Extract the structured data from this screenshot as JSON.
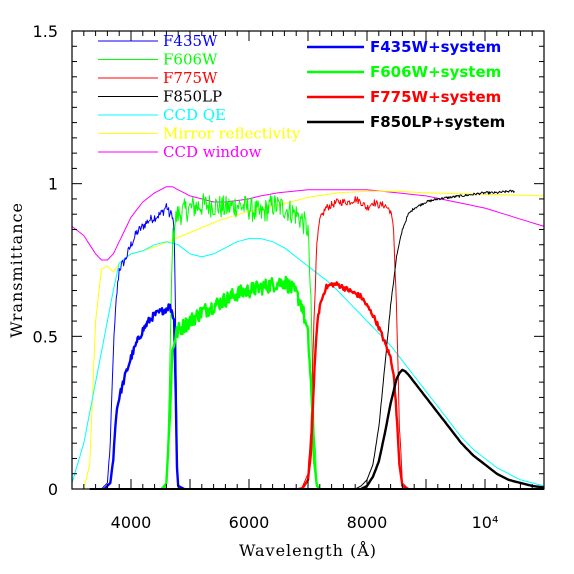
{
  "chart_data": {
    "type": "line",
    "title": "",
    "xlabel": "Wavelength (Å)",
    "ylabel": "Wransmittance",
    "xlim": [
      3000,
      11000
    ],
    "ylim": [
      0,
      1.5
    ],
    "x_ticks": [
      {
        "value": 4000,
        "label": "4000"
      },
      {
        "value": 6000,
        "label": "6000"
      },
      {
        "value": 8000,
        "label": "8000"
      },
      {
        "value": 10000,
        "label": "10⁴"
      }
    ],
    "y_ticks": [
      {
        "value": 0,
        "label": "0"
      },
      {
        "value": 0.5,
        "label": "0.5"
      },
      {
        "value": 1,
        "label": "1"
      },
      {
        "value": 1.5,
        "label": "1.5"
      }
    ],
    "grid": false,
    "legend_left": [
      {
        "name": "F435W",
        "color": "#0000ff"
      },
      {
        "name": "F606W",
        "color": "#00ff00"
      },
      {
        "name": "F775W",
        "color": "#ff0000"
      },
      {
        "name": "F850LP",
        "color": "#000000"
      },
      {
        "name": "CCD QE",
        "color": "#00ffff"
      },
      {
        "name": "Mirror reflectivity",
        "color": "#ffff00"
      },
      {
        "name": "CCD window",
        "color": "#ff00ff"
      }
    ],
    "legend_right": [
      {
        "name": "F435W+system",
        "color": "#0000ff"
      },
      {
        "name": "F606W+system",
        "color": "#00ff00"
      },
      {
        "name": "F775W+system",
        "color": "#ff0000"
      },
      {
        "name": "F850LP+system",
        "color": "#000000"
      }
    ],
    "series": [
      {
        "key": "ccd_window",
        "color": "#ff00ff",
        "width": 1,
        "noise": 0,
        "x": [
          3000,
          3200,
          3400,
          3500,
          3600,
          3700,
          3800,
          4000,
          4200,
          4400,
          4600,
          4700,
          4800,
          5000,
          5200,
          5400,
          5600,
          5800,
          6000,
          6200,
          6500,
          7000,
          7500,
          8000,
          8500,
          9000,
          9500,
          10000,
          10500,
          11000
        ],
        "y": [
          0.86,
          0.83,
          0.77,
          0.75,
          0.75,
          0.77,
          0.81,
          0.89,
          0.94,
          0.97,
          0.99,
          0.99,
          0.98,
          0.96,
          0.95,
          0.94,
          0.94,
          0.945,
          0.95,
          0.96,
          0.97,
          0.98,
          0.98,
          0.98,
          0.97,
          0.96,
          0.94,
          0.92,
          0.89,
          0.86
        ]
      },
      {
        "key": "mirror",
        "color": "#ffff00",
        "width": 1,
        "noise": 0,
        "x": [
          3000,
          3200,
          3300,
          3400,
          3500,
          3600,
          3700,
          3800,
          4000,
          4200,
          4500,
          5000,
          5500,
          6000,
          6500,
          7000,
          7500,
          8000,
          8500,
          9000,
          10000,
          11000
        ],
        "y": [
          0,
          0,
          0.08,
          0.55,
          0.72,
          0.73,
          0.71,
          0.74,
          0.77,
          0.78,
          0.8,
          0.84,
          0.88,
          0.91,
          0.93,
          0.955,
          0.97,
          0.975,
          0.975,
          0.97,
          0.965,
          0.96
        ]
      },
      {
        "key": "ccd_qe",
        "color": "#00ffff",
        "width": 1,
        "noise": 0,
        "x": [
          3000,
          3200,
          3400,
          3600,
          3700,
          3800,
          4000,
          4200,
          4400,
          4600,
          4800,
          5000,
          5200,
          5400,
          5600,
          5800,
          6000,
          6200,
          6400,
          6600,
          6800,
          7000,
          7200,
          7400,
          7600,
          7800,
          8000,
          8200,
          8400,
          8600,
          8800,
          9000,
          9200,
          9400,
          9600,
          9800,
          10000,
          10200,
          10400,
          10600,
          10800,
          11000
        ],
        "y": [
          0.02,
          0.15,
          0.35,
          0.55,
          0.65,
          0.74,
          0.77,
          0.78,
          0.8,
          0.81,
          0.8,
          0.77,
          0.76,
          0.77,
          0.79,
          0.81,
          0.82,
          0.82,
          0.81,
          0.79,
          0.76,
          0.73,
          0.7,
          0.67,
          0.63,
          0.59,
          0.55,
          0.51,
          0.47,
          0.42,
          0.37,
          0.32,
          0.27,
          0.22,
          0.17,
          0.13,
          0.1,
          0.07,
          0.05,
          0.03,
          0.02,
          0.01
        ]
      },
      {
        "key": "f435w",
        "color": "#0000ff",
        "width": 1,
        "noise": 0.015,
        "x": [
          3500,
          3600,
          3650,
          3700,
          3750,
          3800,
          3900,
          4000,
          4100,
          4200,
          4300,
          4400,
          4500,
          4550,
          4600,
          4650,
          4700,
          4730,
          4760,
          4780,
          4800,
          4900
        ],
        "y": [
          0,
          0.02,
          0.15,
          0.45,
          0.62,
          0.72,
          0.75,
          0.8,
          0.84,
          0.86,
          0.88,
          0.89,
          0.9,
          0.91,
          0.93,
          0.9,
          0.9,
          0.85,
          0.5,
          0.1,
          0.01,
          0
        ]
      },
      {
        "key": "f606w",
        "color": "#00ff00",
        "width": 1,
        "noise": 0.04,
        "x": [
          4500,
          4600,
          4650,
          4700,
          4750,
          4800,
          5000,
          5200,
          5400,
          5600,
          5800,
          6000,
          6200,
          6400,
          6600,
          6800,
          6900,
          7000,
          7050,
          7100,
          7150,
          7200
        ],
        "y": [
          0,
          0.02,
          0.3,
          0.8,
          0.88,
          0.9,
          0.92,
          0.93,
          0.93,
          0.92,
          0.93,
          0.92,
          0.9,
          0.93,
          0.92,
          0.9,
          0.88,
          0.85,
          0.6,
          0.2,
          0.02,
          0
        ]
      },
      {
        "key": "f775w",
        "color": "#ff0000",
        "width": 1,
        "noise": 0.012,
        "x": [
          6800,
          6900,
          7000,
          7050,
          7100,
          7150,
          7200,
          7300,
          7400,
          7500,
          7600,
          7700,
          7800,
          7900,
          8000,
          8100,
          8200,
          8300,
          8400,
          8450,
          8500,
          8550,
          8600,
          8700
        ],
        "y": [
          0,
          0.005,
          0.05,
          0.2,
          0.55,
          0.8,
          0.88,
          0.92,
          0.93,
          0.94,
          0.94,
          0.94,
          0.95,
          0.94,
          0.92,
          0.94,
          0.93,
          0.93,
          0.91,
          0.85,
          0.6,
          0.2,
          0.02,
          0
        ]
      },
      {
        "key": "f850lp",
        "color": "#000000",
        "width": 1,
        "noise": 0.004,
        "x": [
          7800,
          7900,
          8000,
          8100,
          8200,
          8300,
          8400,
          8500,
          8600,
          8700,
          8800,
          9000,
          9200,
          9400,
          9600,
          9800,
          10000,
          10200,
          10400,
          10500
        ],
        "y": [
          0,
          0.01,
          0.03,
          0.08,
          0.2,
          0.4,
          0.6,
          0.76,
          0.85,
          0.9,
          0.92,
          0.94,
          0.95,
          0.955,
          0.96,
          0.965,
          0.97,
          0.97,
          0.975,
          0.975
        ]
      },
      {
        "key": "f435w_sys",
        "color": "#0000ff",
        "width": 2.4,
        "noise": 0.012,
        "x": [
          3550,
          3650,
          3700,
          3750,
          3800,
          3900,
          4000,
          4100,
          4200,
          4300,
          4400,
          4500,
          4600,
          4650,
          4700,
          4730,
          4760,
          4780,
          4800,
          4900
        ],
        "y": [
          0,
          0.02,
          0.1,
          0.25,
          0.3,
          0.37,
          0.43,
          0.48,
          0.52,
          0.55,
          0.57,
          0.58,
          0.59,
          0.6,
          0.58,
          0.55,
          0.3,
          0.07,
          0.01,
          0
        ]
      },
      {
        "key": "f606w_sys",
        "color": "#00ff00",
        "width": 2.4,
        "noise": 0.025,
        "x": [
          4550,
          4600,
          4650,
          4700,
          4750,
          4800,
          5000,
          5200,
          5400,
          5600,
          5800,
          6000,
          6200,
          6400,
          6600,
          6800,
          6900,
          7000,
          7050,
          7100,
          7150,
          7200
        ],
        "y": [
          0,
          0.02,
          0.2,
          0.45,
          0.5,
          0.52,
          0.55,
          0.58,
          0.6,
          0.62,
          0.64,
          0.65,
          0.66,
          0.67,
          0.68,
          0.64,
          0.6,
          0.5,
          0.35,
          0.1,
          0.01,
          0
        ]
      },
      {
        "key": "f775w_sys",
        "color": "#ff0000",
        "width": 2.4,
        "noise": 0.008,
        "x": [
          6900,
          7000,
          7050,
          7100,
          7150,
          7200,
          7300,
          7400,
          7500,
          7600,
          7700,
          7800,
          7900,
          8000,
          8100,
          8200,
          8300,
          8400,
          8450,
          8500,
          8550,
          8600,
          8700
        ],
        "y": [
          0,
          0.03,
          0.12,
          0.35,
          0.53,
          0.6,
          0.66,
          0.67,
          0.67,
          0.66,
          0.65,
          0.64,
          0.63,
          0.6,
          0.57,
          0.53,
          0.48,
          0.43,
          0.38,
          0.25,
          0.08,
          0.01,
          0
        ]
      },
      {
        "key": "f850lp_sys",
        "color": "#000000",
        "width": 2.4,
        "noise": 0,
        "x": [
          7900,
          8000,
          8100,
          8200,
          8300,
          8400,
          8500,
          8550,
          8600,
          8650,
          8700,
          8800,
          9000,
          9200,
          9400,
          9600,
          9800,
          10000,
          10200,
          10400,
          10600,
          10800,
          11000
        ],
        "y": [
          0,
          0.01,
          0.04,
          0.09,
          0.18,
          0.28,
          0.36,
          0.38,
          0.39,
          0.385,
          0.375,
          0.35,
          0.3,
          0.25,
          0.2,
          0.15,
          0.11,
          0.08,
          0.05,
          0.03,
          0.02,
          0.01,
          0.005
        ]
      }
    ]
  }
}
